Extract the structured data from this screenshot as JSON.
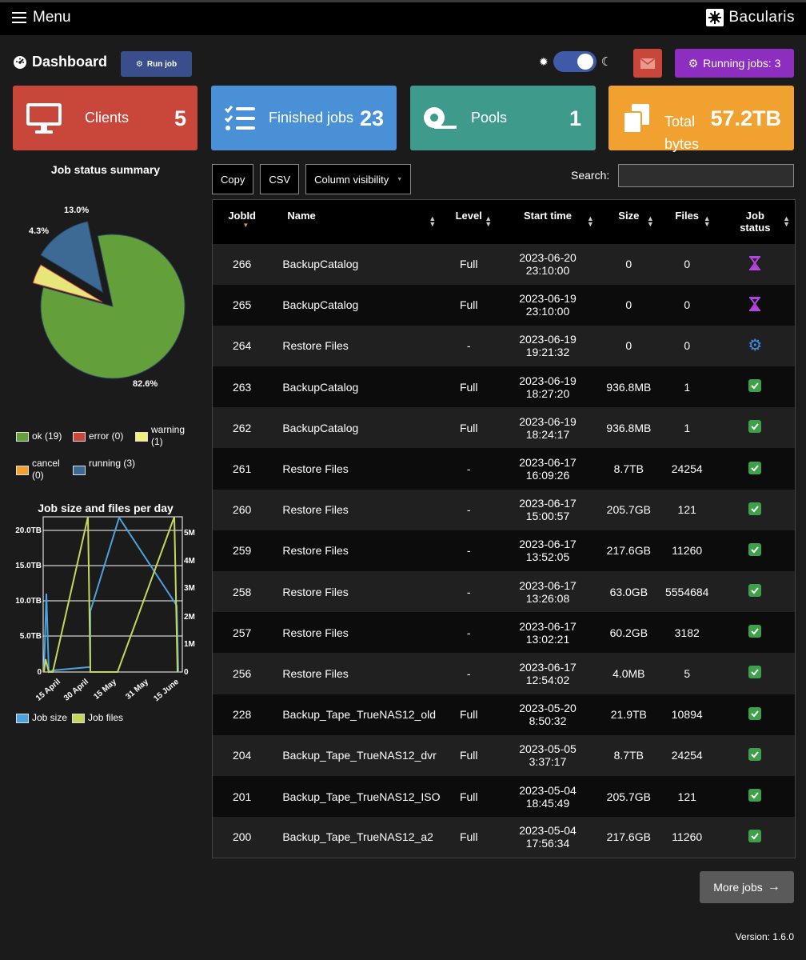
{
  "topbar": {
    "menu_label": "Menu",
    "logo_text": "Bacularis"
  },
  "header": {
    "title": "Dashboard",
    "run_job_label": "Run job",
    "running_jobs_label": "Running jobs: 3"
  },
  "tiles": {
    "clients": {
      "label": "Clients",
      "value": "5"
    },
    "finished": {
      "label": "Finished jobs",
      "value": "23"
    },
    "pools": {
      "label": "Pools",
      "value": "1"
    },
    "total": {
      "label": "Total bytes",
      "value": "57.2TB"
    }
  },
  "pie": {
    "title": "Job status summary",
    "slice_labels": [
      "13.0%",
      "4.3%",
      "82.6%"
    ],
    "legend": [
      "ok (19)",
      "error (0)",
      "warning (1)",
      "cancel (0)",
      "running (3)"
    ]
  },
  "line": {
    "title": "Job size and files per day",
    "left_ticks": [
      "20.0TB",
      "15.0TB",
      "10.0TB",
      "5.0TB",
      "0"
    ],
    "right_ticks": [
      "5M",
      "4M",
      "3M",
      "2M",
      "1M",
      "0"
    ],
    "x_ticks": [
      "15 April",
      "30 April",
      "15 May",
      "31 May",
      "15 June"
    ],
    "legend": [
      "Job size",
      "Job files"
    ]
  },
  "chart_data": {
    "type": "pie",
    "title": "Job status summary",
    "categories": [
      "ok",
      "error",
      "warning",
      "cancel",
      "running"
    ],
    "values": [
      19,
      0,
      1,
      0,
      3
    ],
    "percent_labels": [
      "82.6%",
      "0%",
      "4.3%",
      "0%",
      "13.0%"
    ],
    "colors": [
      "#63a03a",
      "#c8473a",
      "#e6e67a",
      "#f0a130",
      "#3d6a94"
    ],
    "legend_position": "bottom"
  },
  "toolbar": {
    "copy": "Copy",
    "csv": "CSV",
    "colvis": "Column visibility",
    "search_label": "Search:"
  },
  "table": {
    "columns": [
      "JobId",
      "Name",
      "Level",
      "Start time",
      "Size",
      "Files",
      "Job status"
    ],
    "rows": [
      {
        "id": "266",
        "name": "BackupCatalog",
        "level": "Full",
        "date": "2023-06-20",
        "time": "23:10:00",
        "size": "0",
        "files": "0",
        "status": "running"
      },
      {
        "id": "265",
        "name": "BackupCatalog",
        "level": "Full",
        "date": "2023-06-19",
        "time": "23:10:00",
        "size": "0",
        "files": "0",
        "status": "running"
      },
      {
        "id": "264",
        "name": "Restore Files",
        "level": "-",
        "date": "2023-06-19",
        "time": "19:21:32",
        "size": "0",
        "files": "0",
        "status": "active"
      },
      {
        "id": "263",
        "name": "BackupCatalog",
        "level": "Full",
        "date": "2023-06-19",
        "time": "18:27:20",
        "size": "936.8MB",
        "files": "1",
        "status": "ok"
      },
      {
        "id": "262",
        "name": "BackupCatalog",
        "level": "Full",
        "date": "2023-06-19",
        "time": "18:24:17",
        "size": "936.8MB",
        "files": "1",
        "status": "ok"
      },
      {
        "id": "261",
        "name": "Restore Files",
        "level": "-",
        "date": "2023-06-17",
        "time": "16:09:26",
        "size": "8.7TB",
        "files": "24254",
        "status": "ok"
      },
      {
        "id": "260",
        "name": "Restore Files",
        "level": "-",
        "date": "2023-06-17",
        "time": "15:00:57",
        "size": "205.7GB",
        "files": "121",
        "status": "ok"
      },
      {
        "id": "259",
        "name": "Restore Files",
        "level": "-",
        "date": "2023-06-17",
        "time": "13:52:05",
        "size": "217.6GB",
        "files": "11260",
        "status": "ok"
      },
      {
        "id": "258",
        "name": "Restore Files",
        "level": "-",
        "date": "2023-06-17",
        "time": "13:26:08",
        "size": "63.0GB",
        "files": "5554684",
        "status": "ok"
      },
      {
        "id": "257",
        "name": "Restore Files",
        "level": "-",
        "date": "2023-06-17",
        "time": "13:02:21",
        "size": "60.2GB",
        "files": "3182",
        "status": "ok"
      },
      {
        "id": "256",
        "name": "Restore Files",
        "level": "-",
        "date": "2023-06-17",
        "time": "12:54:02",
        "size": "4.0MB",
        "files": "5",
        "status": "ok"
      },
      {
        "id": "228",
        "name": "Backup_Tape_TrueNAS12_old",
        "level": "Full",
        "date": "2023-05-20",
        "time": "8:50:32",
        "size": "21.9TB",
        "files": "10894",
        "status": "ok"
      },
      {
        "id": "204",
        "name": "Backup_Tape_TrueNAS12_dvr",
        "level": "Full",
        "date": "2023-05-05",
        "time": "3:37:17",
        "size": "8.7TB",
        "files": "24254",
        "status": "ok"
      },
      {
        "id": "201",
        "name": "Backup_Tape_TrueNAS12_ISO",
        "level": "Full",
        "date": "2023-05-04",
        "time": "18:45:49",
        "size": "205.7GB",
        "files": "121",
        "status": "ok"
      },
      {
        "id": "200",
        "name": "Backup_Tape_TrueNAS12_a2",
        "level": "Full",
        "date": "2023-05-04",
        "time": "17:56:34",
        "size": "217.6GB",
        "files": "11260",
        "status": "ok"
      }
    ]
  },
  "footer": {
    "more_jobs": "More jobs",
    "version": "Version: 1.6.0"
  }
}
